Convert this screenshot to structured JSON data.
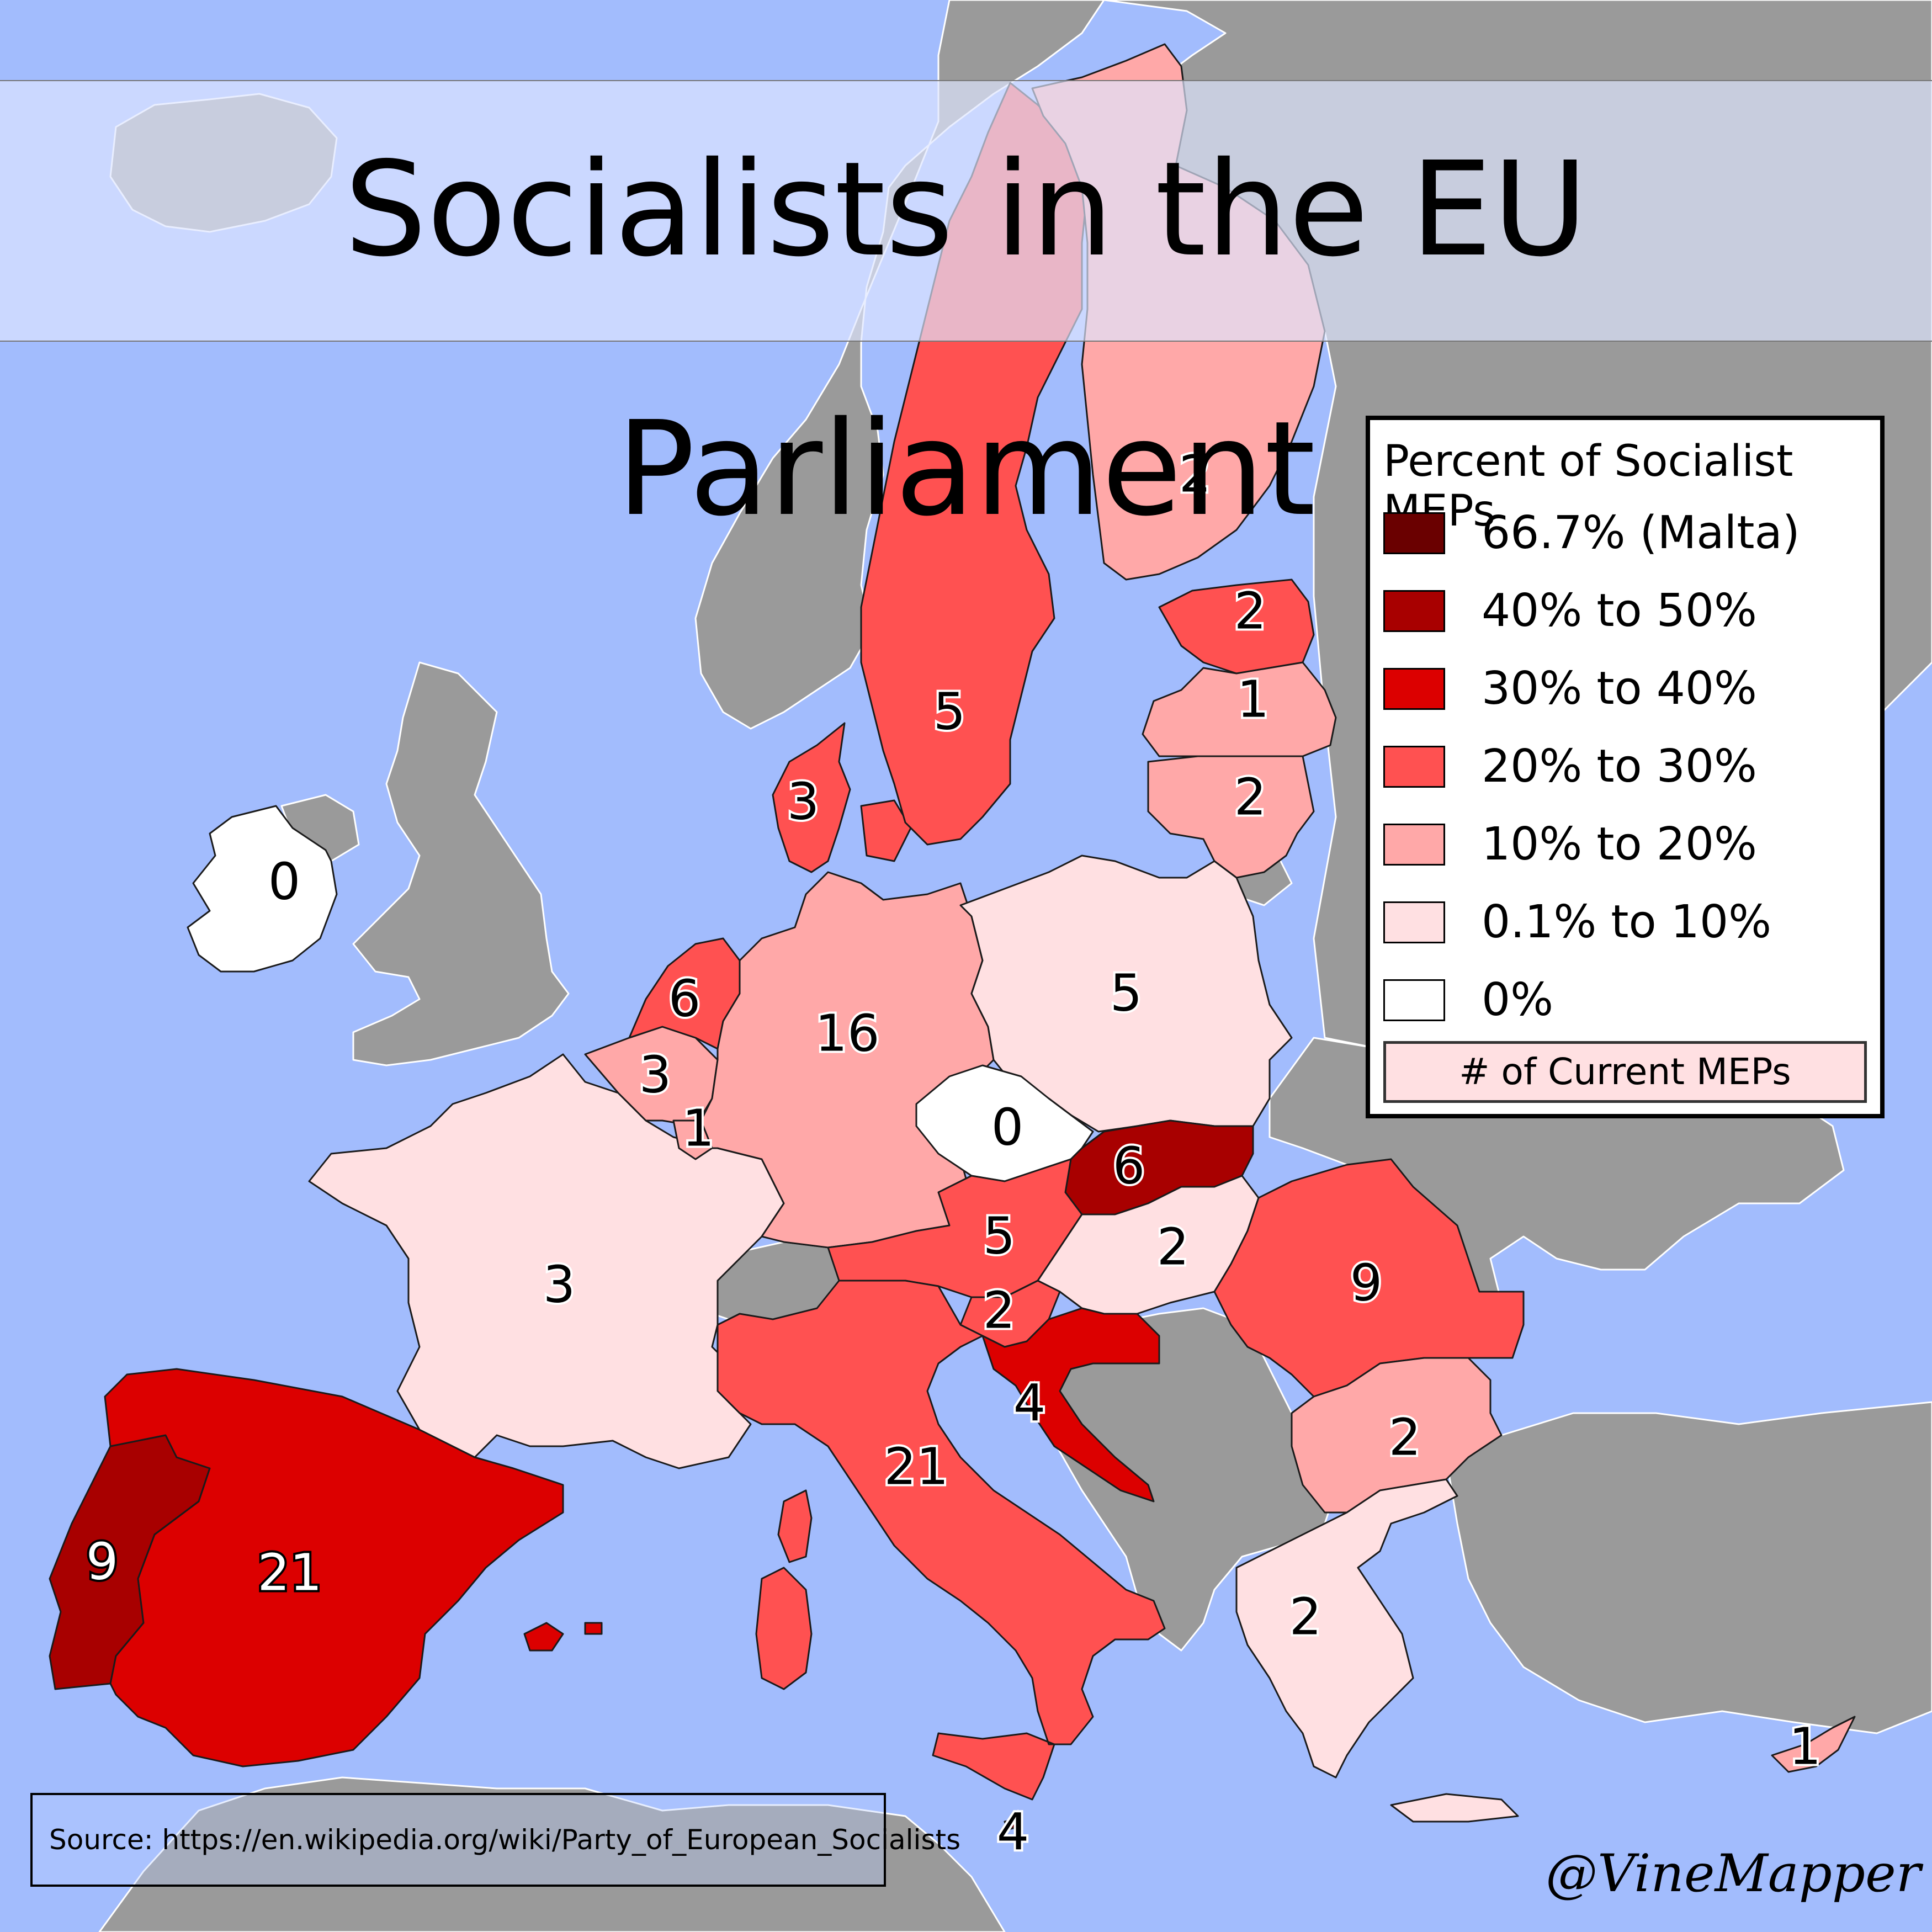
{
  "title": "Socialists in the EU Parliament",
  "colors": {
    "sea": "#a2bcfd",
    "non_eu_land": "#9a9a9a",
    "bin_66_7": "#6a0000",
    "bin_40_50": "#a80000",
    "bin_30_40": "#dc0000",
    "bin_20_30": "#ff5151",
    "bin_10_20": "#ffa8a8",
    "bin_0_1_10": "#ffe0e2",
    "bin_0": "#ffffff"
  },
  "legend": {
    "title": "Percent of Socialist MEPs",
    "items": [
      {
        "label": "66.7% (Malta)",
        "color": "#6a0000"
      },
      {
        "label": "40% to 50%",
        "color": "#a80000"
      },
      {
        "label": "30% to 40%",
        "color": "#dc0000"
      },
      {
        "label": "20% to 30%",
        "color": "#ff5151"
      },
      {
        "label": "10% to 20%",
        "color": "#ffa8a8"
      },
      {
        "label": "0.1% to 10%",
        "color": "#ffe0e2"
      },
      {
        "label": "0%",
        "color": "#ffffff"
      }
    ],
    "mep_key": "# of Current MEPs"
  },
  "countries": {
    "ireland": {
      "meps": "0",
      "color": "#ffffff"
    },
    "portugal": {
      "meps": "9",
      "color": "#a80000"
    },
    "spain": {
      "meps": "21",
      "color": "#dc0000"
    },
    "france": {
      "meps": "3",
      "color": "#ffe0e2"
    },
    "belgium": {
      "meps": "3",
      "color": "#ffa8a8"
    },
    "luxembourg": {
      "meps": "1",
      "color": "#ffa8a8"
    },
    "netherlands": {
      "meps": "6",
      "color": "#ff5151"
    },
    "germany": {
      "meps": "16",
      "color": "#ffa8a8"
    },
    "denmark": {
      "meps": "3",
      "color": "#ff5151"
    },
    "sweden": {
      "meps": "5",
      "color": "#ff5151"
    },
    "finland": {
      "meps": "2",
      "color": "#ffa8a8"
    },
    "estonia": {
      "meps": "2",
      "color": "#ff5151"
    },
    "latvia": {
      "meps": "1",
      "color": "#ffa8a8"
    },
    "lithuania": {
      "meps": "2",
      "color": "#ffa8a8"
    },
    "poland": {
      "meps": "5",
      "color": "#ffe0e2"
    },
    "czechia": {
      "meps": "0",
      "color": "#ffffff"
    },
    "slovakia": {
      "meps": "6",
      "color": "#a80000"
    },
    "austria": {
      "meps": "5",
      "color": "#ff5151"
    },
    "hungary": {
      "meps": "2",
      "color": "#ffe0e2"
    },
    "slovenia": {
      "meps": "2",
      "color": "#ff5151"
    },
    "croatia": {
      "meps": "4",
      "color": "#dc0000"
    },
    "romania": {
      "meps": "9",
      "color": "#ff5151"
    },
    "bulgaria": {
      "meps": "2",
      "color": "#ffa8a8"
    },
    "greece": {
      "meps": "2",
      "color": "#ffe0e2"
    },
    "italy": {
      "meps": "21",
      "color": "#ff5151"
    },
    "malta": {
      "meps": "4",
      "color": "#6a0000"
    },
    "cyprus": {
      "meps": "1",
      "color": "#ffa8a8"
    }
  },
  "source": "Source: https://en.wikipedia.org/wiki/Party_of_European_Socialists",
  "credit": "@VineMapper"
}
